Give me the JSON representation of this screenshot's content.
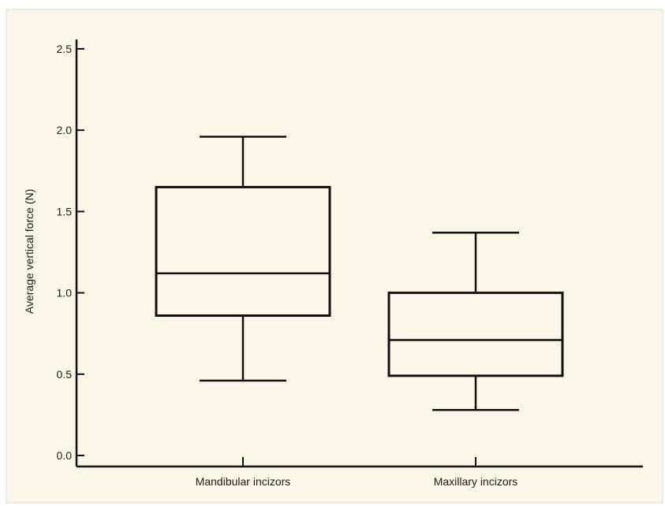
{
  "colors": {
    "page_background": "#ffffff",
    "panel_background": "#fbf7e8",
    "panel_border": "#d9d9d9",
    "ink": "#111111"
  },
  "chart_data": {
    "type": "box",
    "title": "",
    "xlabel": "",
    "ylabel": "Average vertical force (N)",
    "ylim": [
      0.0,
      2.5
    ],
    "yticks": [
      "0.0",
      "0.5",
      "1.0",
      "1.5",
      "2.0",
      "2.5"
    ],
    "grid": false,
    "categories": [
      "Mandibular incizors",
      "Maxillary incizors"
    ],
    "boxes": [
      {
        "label": "Mandibular incizors",
        "whisker_low": 0.46,
        "q1": 0.86,
        "median": 1.12,
        "q3": 1.65,
        "whisker_high": 1.96
      },
      {
        "label": "Maxillary incizors",
        "whisker_low": 0.28,
        "q1": 0.49,
        "median": 0.71,
        "q3": 1.0,
        "whisker_high": 1.37
      }
    ]
  }
}
